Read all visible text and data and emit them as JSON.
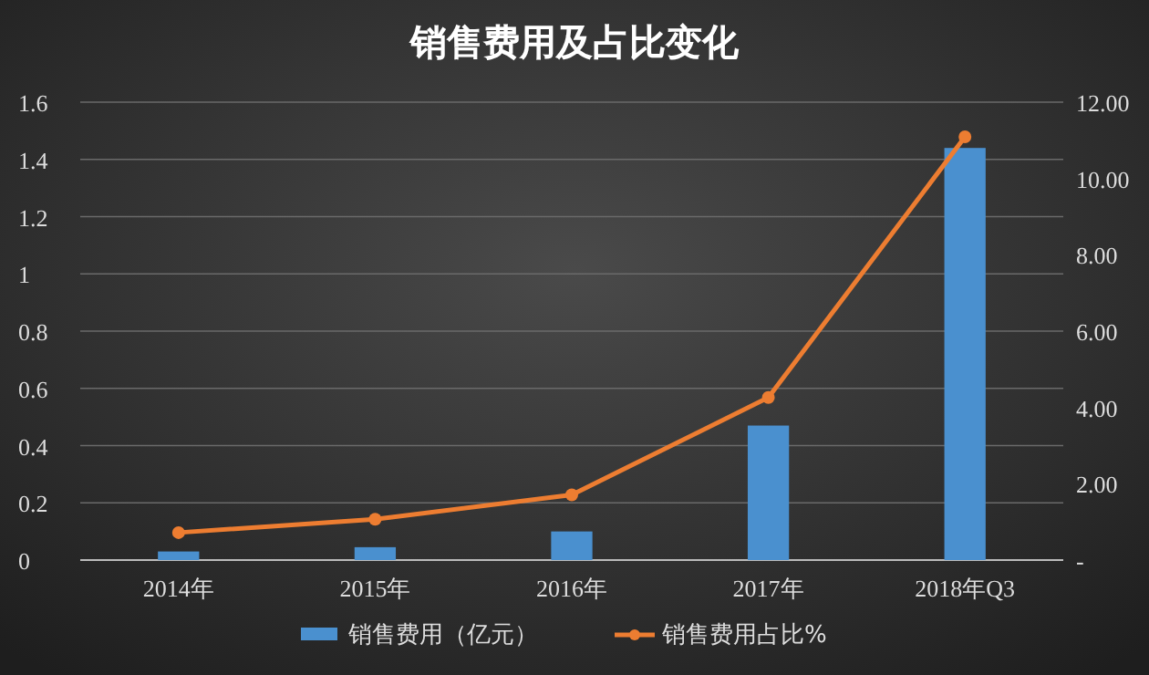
{
  "chart_data": {
    "type": "bar",
    "title": "销售费用及占比变化",
    "categories": [
      "2014年",
      "2015年",
      "2016年",
      "2017年",
      "2018年Q3"
    ],
    "series": [
      {
        "name": "销售费用（亿元）",
        "color": "#4a90cf",
        "values": [
          0.03,
          0.045,
          0.1,
          0.47,
          1.44
        ]
      },
      {
        "name": "销售费用占比%",
        "type": "line",
        "axis": "y2",
        "color": "#ed7d31",
        "marker": "circle",
        "values": [
          0.72,
          1.07,
          1.71,
          4.26,
          11.09
        ]
      }
    ],
    "ylim": [
      0,
      1.6
    ],
    "yticks": [
      0,
      0.2,
      0.4,
      0.6,
      0.8,
      1,
      1.2,
      1.4,
      1.6
    ],
    "y2lim": [
      0,
      12
    ],
    "y2ticks": [
      {
        "value": 0,
        "label": "-"
      },
      {
        "value": 2,
        "label": "2.00"
      },
      {
        "value": 4,
        "label": "4.00"
      },
      {
        "value": 6,
        "label": "6.00"
      },
      {
        "value": 8,
        "label": "8.00"
      },
      {
        "value": 10,
        "label": "10.00"
      },
      {
        "value": 12,
        "label": "12.00"
      }
    ],
    "grid": "y",
    "legend": "bottom"
  }
}
